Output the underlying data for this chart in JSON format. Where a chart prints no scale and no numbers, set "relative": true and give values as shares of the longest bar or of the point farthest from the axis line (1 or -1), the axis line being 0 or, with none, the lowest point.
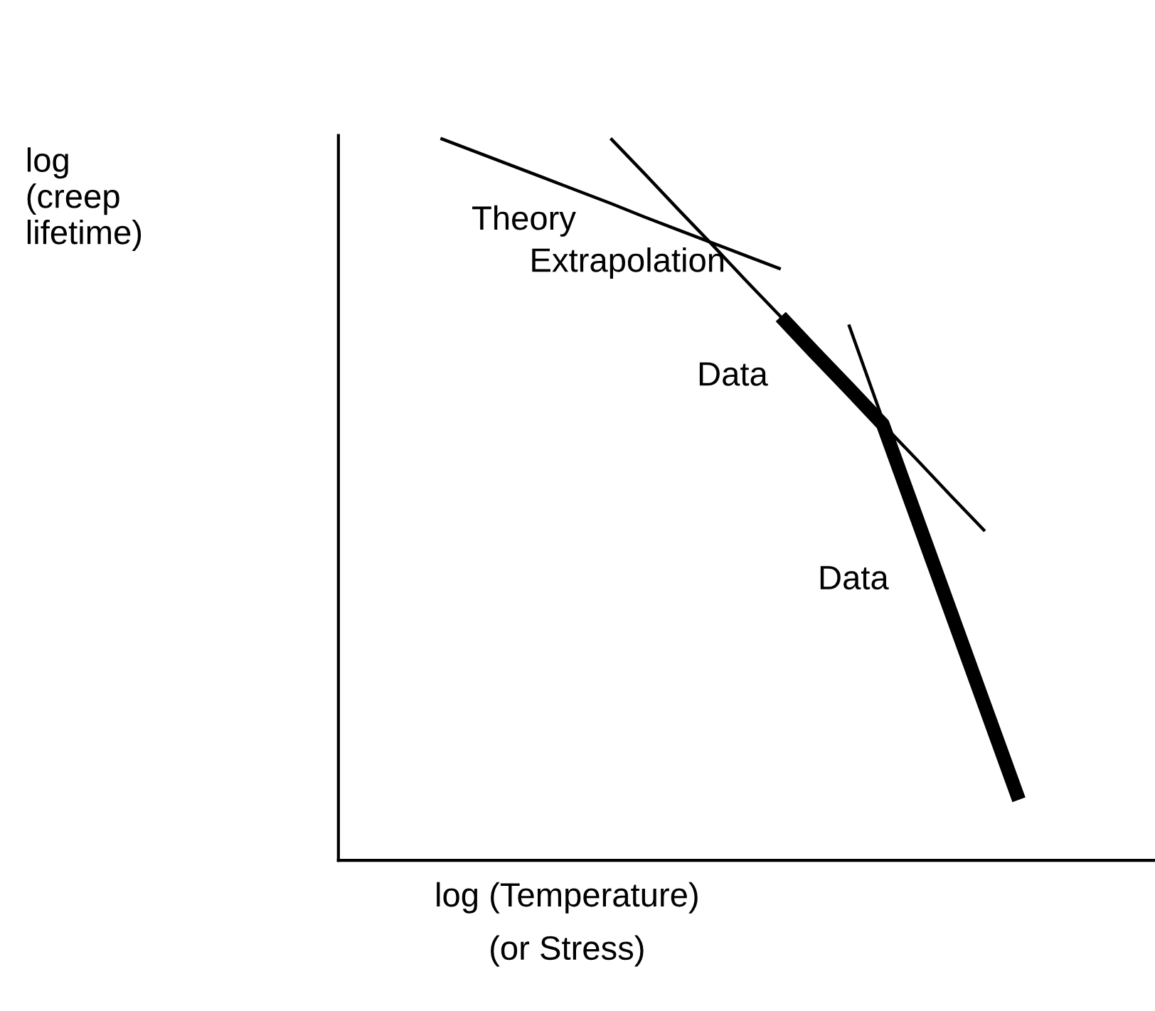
{
  "chart_data": {
    "type": "line",
    "relative": true,
    "xlabel": "log (Temperature)\n(or Stress)",
    "annotations": [
      "log\n(creep\nlifetime)",
      "Data"
    ],
    "marker": "none",
    "categories": [
      null,
      null,
      null,
      null,
      null,
      null,
      null,
      null,
      null,
      null,
      null,
      null,
      null,
      null,
      null,
      null,
      null,
      null,
      null,
      null,
      null,
      null,
      null,
      null,
      null
    ],
    "series": [
      {
        "name": "Theory",
        "color": "#000000",
        "values": [
          null,
          null,
          null,
          1.0,
          0.982,
          0.964,
          0.946,
          0.928,
          0.91,
          0.891,
          0.873,
          0.855,
          0.837,
          0.819,
          null,
          null,
          null,
          null,
          null,
          null,
          null,
          null,
          null,
          null,
          null
        ]
      },
      {
        "name": "Extrapolation",
        "color": "#000000",
        "values": [
          null,
          null,
          null,
          null,
          null,
          null,
          null,
          null,
          1.0,
          0.951,
          0.901,
          0.852,
          0.802,
          0.753,
          0.703,
          0.654,
          0.604,
          0.555,
          0.505,
          0.456,
          null,
          null,
          null,
          null,
          null
        ]
      },
      {
        "color": "#000000",
        "values": [
          null,
          null,
          null,
          null,
          null,
          null,
          null,
          null,
          null,
          null,
          null,
          null,
          null,
          null,
          null,
          0.742,
          0.61,
          null,
          null,
          null,
          null,
          null,
          null,
          null,
          null
        ]
      },
      {
        "name": "Data",
        "color": "#000000",
        "values": [
          null,
          null,
          null,
          null,
          null,
          null,
          null,
          null,
          null,
          null,
          null,
          null,
          null,
          0.753,
          0.703,
          0.654,
          0.604,
          0.474,
          0.344,
          0.214,
          0.084,
          null,
          null,
          null,
          null
        ]
      }
    ]
  }
}
